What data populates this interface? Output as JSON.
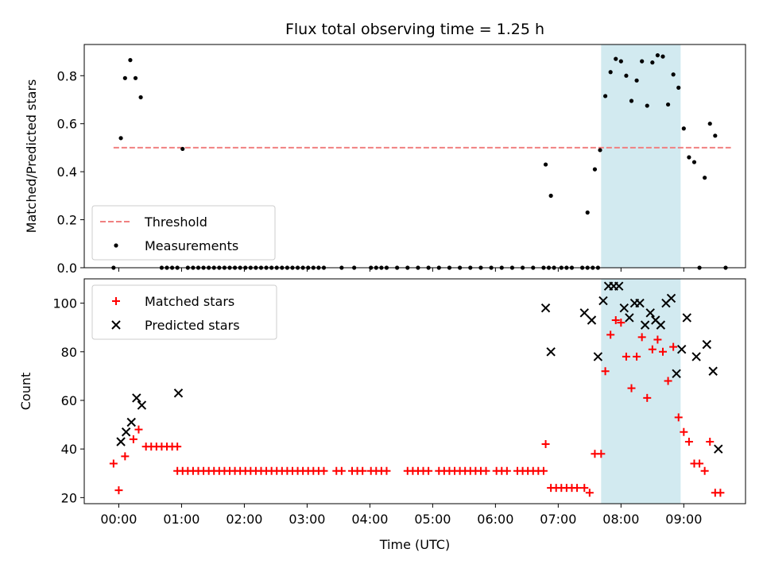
{
  "title": "Flux total observing time = 1.25 h",
  "xlabel": "Time (UTC)",
  "x_ticks": [
    "00:00",
    "01:00",
    "02:00",
    "03:00",
    "04:00",
    "05:00",
    "06:00",
    "07:00",
    "08:00",
    "09:00"
  ],
  "highlight_color": "#a6d6e2",
  "chart_data": [
    {
      "type": "scatter",
      "ylabel": "Matched/Predicted stars",
      "xlim": [
        "-00:33",
        "09:59"
      ],
      "ylim": [
        0,
        0.93
      ],
      "y_ticks": [
        "0.0",
        "0.2",
        "0.4",
        "0.6",
        "0.8"
      ],
      "highlight_span": [
        "07:41",
        "08:57"
      ],
      "legend": {
        "position": "lower-left",
        "entries": [
          "Threshold",
          "Measurements"
        ]
      },
      "threshold": {
        "name": "Threshold",
        "value": 0.5,
        "x_range": [
          "-00:05",
          "09:45"
        ],
        "color": "#f08080",
        "style": "dashed"
      },
      "series": [
        {
          "name": "Measurements",
          "marker": "dot",
          "color": "#000000",
          "points": [
            [
              "-00:05",
              0
            ],
            [
              "00:02",
              0.54
            ],
            [
              "00:06",
              0.79
            ],
            [
              "00:11",
              0.865
            ],
            [
              "00:16",
              0.79
            ],
            [
              "00:21",
              0.71
            ],
            [
              "00:41",
              0
            ],
            [
              "00:46",
              0
            ],
            [
              "00:51",
              0
            ],
            [
              "00:56",
              0
            ],
            [
              "01:01",
              0.495
            ],
            [
              "01:06",
              0
            ],
            [
              "01:11",
              0
            ],
            [
              "01:16",
              0
            ],
            [
              "01:21",
              0
            ],
            [
              "01:26",
              0
            ],
            [
              "01:31",
              0
            ],
            [
              "01:36",
              0
            ],
            [
              "01:41",
              0
            ],
            [
              "01:46",
              0
            ],
            [
              "01:51",
              0
            ],
            [
              "01:56",
              0
            ],
            [
              "02:01",
              0
            ],
            [
              "02:06",
              0
            ],
            [
              "02:11",
              0
            ],
            [
              "02:16",
              0
            ],
            [
              "02:21",
              0
            ],
            [
              "02:26",
              0
            ],
            [
              "02:31",
              0
            ],
            [
              "02:36",
              0
            ],
            [
              "02:41",
              0
            ],
            [
              "02:46",
              0
            ],
            [
              "02:51",
              0
            ],
            [
              "02:56",
              0
            ],
            [
              "03:01",
              0
            ],
            [
              "03:06",
              0
            ],
            [
              "03:11",
              0
            ],
            [
              "03:16",
              0
            ],
            [
              "03:33",
              0
            ],
            [
              "03:45",
              0
            ],
            [
              "04:01",
              0
            ],
            [
              "04:06",
              0
            ],
            [
              "04:11",
              0
            ],
            [
              "04:16",
              0
            ],
            [
              "04:26",
              0
            ],
            [
              "04:36",
              0
            ],
            [
              "04:46",
              0
            ],
            [
              "04:56",
              0
            ],
            [
              "05:06",
              0
            ],
            [
              "05:16",
              0
            ],
            [
              "05:26",
              0
            ],
            [
              "05:36",
              0
            ],
            [
              "05:46",
              0
            ],
            [
              "05:56",
              0
            ],
            [
              "06:06",
              0
            ],
            [
              "06:16",
              0
            ],
            [
              "06:26",
              0
            ],
            [
              "06:36",
              0
            ],
            [
              "06:46",
              0
            ],
            [
              "06:51",
              0
            ],
            [
              "06:56",
              0
            ],
            [
              "06:48",
              0.43
            ],
            [
              "06:53",
              0.3
            ],
            [
              "07:03",
              0
            ],
            [
              "07:08",
              0
            ],
            [
              "07:13",
              0
            ],
            [
              "07:23",
              0
            ],
            [
              "07:28",
              0
            ],
            [
              "07:33",
              0
            ],
            [
              "07:38",
              0
            ],
            [
              "07:28",
              0.23
            ],
            [
              "07:35",
              0.41
            ],
            [
              "07:40",
              0.49
            ],
            [
              "07:45",
              0.715
            ],
            [
              "07:50",
              0.815
            ],
            [
              "07:55",
              0.87
            ],
            [
              "08:00",
              0.86
            ],
            [
              "08:05",
              0.8
            ],
            [
              "08:10",
              0.695
            ],
            [
              "08:15",
              0.78
            ],
            [
              "08:20",
              0.86
            ],
            [
              "08:25",
              0.675
            ],
            [
              "08:30",
              0.855
            ],
            [
              "08:35",
              0.885
            ],
            [
              "08:40",
              0.88
            ],
            [
              "08:45",
              0.68
            ],
            [
              "08:50",
              0.805
            ],
            [
              "08:55",
              0.75
            ],
            [
              "09:00",
              0.58
            ],
            [
              "09:05",
              0.46
            ],
            [
              "09:10",
              0.44
            ],
            [
              "09:15",
              0
            ],
            [
              "09:20",
              0.375
            ],
            [
              "09:25",
              0.6
            ],
            [
              "09:30",
              0.55
            ],
            [
              "09:40",
              0
            ]
          ]
        }
      ]
    },
    {
      "type": "scatter",
      "ylabel": "Count",
      "xlim": [
        "-00:33",
        "09:59"
      ],
      "ylim": [
        17.5,
        110
      ],
      "y_ticks": [
        "20",
        "40",
        "60",
        "80",
        "100"
      ],
      "highlight_span": [
        "07:41",
        "08:57"
      ],
      "legend": {
        "position": "upper-left",
        "entries": [
          "Matched stars",
          "Predicted stars"
        ]
      },
      "series": [
        {
          "name": "Matched stars",
          "marker": "plus",
          "color": "#ff0000",
          "points": [
            [
              "-00:05",
              34
            ],
            [
              "00:00",
              23
            ],
            [
              "00:06",
              37
            ],
            [
              "00:14",
              44
            ],
            [
              "00:19",
              48
            ],
            [
              "00:26",
              41
            ],
            [
              "00:31",
              41
            ],
            [
              "00:36",
              41
            ],
            [
              "00:41",
              41
            ],
            [
              "00:46",
              41
            ],
            [
              "00:51",
              41
            ],
            [
              "00:56",
              41
            ],
            [
              "00:56",
              31
            ],
            [
              "01:01",
              31
            ],
            [
              "01:06",
              31
            ],
            [
              "01:11",
              31
            ],
            [
              "01:16",
              31
            ],
            [
              "01:21",
              31
            ],
            [
              "01:26",
              31
            ],
            [
              "01:31",
              31
            ],
            [
              "01:36",
              31
            ],
            [
              "01:41",
              31
            ],
            [
              "01:46",
              31
            ],
            [
              "01:51",
              31
            ],
            [
              "01:56",
              31
            ],
            [
              "02:01",
              31
            ],
            [
              "02:06",
              31
            ],
            [
              "02:11",
              31
            ],
            [
              "02:16",
              31
            ],
            [
              "02:21",
              31
            ],
            [
              "02:26",
              31
            ],
            [
              "02:31",
              31
            ],
            [
              "02:36",
              31
            ],
            [
              "02:41",
              31
            ],
            [
              "02:46",
              31
            ],
            [
              "02:51",
              31
            ],
            [
              "02:56",
              31
            ],
            [
              "03:01",
              31
            ],
            [
              "03:06",
              31
            ],
            [
              "03:11",
              31
            ],
            [
              "03:16",
              31
            ],
            [
              "03:28",
              31
            ],
            [
              "03:33",
              31
            ],
            [
              "03:43",
              31
            ],
            [
              "03:48",
              31
            ],
            [
              "03:53",
              31
            ],
            [
              "04:01",
              31
            ],
            [
              "04:06",
              31
            ],
            [
              "04:11",
              31
            ],
            [
              "04:16",
              31
            ],
            [
              "04:36",
              31
            ],
            [
              "04:41",
              31
            ],
            [
              "04:46",
              31
            ],
            [
              "04:51",
              31
            ],
            [
              "04:56",
              31
            ],
            [
              "05:06",
              31
            ],
            [
              "05:11",
              31
            ],
            [
              "05:16",
              31
            ],
            [
              "05:21",
              31
            ],
            [
              "05:26",
              31
            ],
            [
              "05:31",
              31
            ],
            [
              "05:36",
              31
            ],
            [
              "05:41",
              31
            ],
            [
              "05:46",
              31
            ],
            [
              "05:51",
              31
            ],
            [
              "06:01",
              31
            ],
            [
              "06:06",
              31
            ],
            [
              "06:11",
              31
            ],
            [
              "06:21",
              31
            ],
            [
              "06:26",
              31
            ],
            [
              "06:31",
              31
            ],
            [
              "06:36",
              31
            ],
            [
              "06:41",
              31
            ],
            [
              "06:46",
              31
            ],
            [
              "06:48",
              42
            ],
            [
              "06:53",
              24
            ],
            [
              "06:58",
              24
            ],
            [
              "07:03",
              24
            ],
            [
              "07:08",
              24
            ],
            [
              "07:13",
              24
            ],
            [
              "07:18",
              24
            ],
            [
              "07:25",
              24
            ],
            [
              "07:30",
              22
            ],
            [
              "07:35",
              38
            ],
            [
              "07:41",
              38
            ],
            [
              "07:45",
              72
            ],
            [
              "07:50",
              87
            ],
            [
              "07:55",
              93
            ],
            [
              "08:00",
              92
            ],
            [
              "08:05",
              78
            ],
            [
              "08:10",
              65
            ],
            [
              "08:15",
              78
            ],
            [
              "08:20",
              86
            ],
            [
              "08:25",
              61
            ],
            [
              "08:30",
              81
            ],
            [
              "08:35",
              85
            ],
            [
              "08:40",
              80
            ],
            [
              "08:45",
              68
            ],
            [
              "08:50",
              82
            ],
            [
              "08:55",
              53
            ],
            [
              "09:00",
              47
            ],
            [
              "09:05",
              43
            ],
            [
              "09:10",
              34
            ],
            [
              "09:15",
              34
            ],
            [
              "09:20",
              31
            ],
            [
              "09:25",
              43
            ],
            [
              "09:30",
              22
            ],
            [
              "09:35",
              22
            ]
          ]
        },
        {
          "name": "Predicted stars",
          "marker": "x",
          "color": "#000000",
          "points": [
            [
              "00:02",
              43
            ],
            [
              "00:07",
              47
            ],
            [
              "00:12",
              51
            ],
            [
              "00:17",
              61
            ],
            [
              "00:22",
              58
            ],
            [
              "00:57",
              63
            ],
            [
              "06:48",
              98
            ],
            [
              "06:53",
              80
            ],
            [
              "07:25",
              96
            ],
            [
              "07:32",
              93
            ],
            [
              "07:38",
              78
            ],
            [
              "07:43",
              101
            ],
            [
              "07:48",
              107
            ],
            [
              "07:53",
              107
            ],
            [
              "07:58",
              107
            ],
            [
              "08:03",
              98
            ],
            [
              "08:08",
              94
            ],
            [
              "08:13",
              100
            ],
            [
              "08:18",
              100
            ],
            [
              "08:23",
              91
            ],
            [
              "08:28",
              96
            ],
            [
              "08:33",
              93
            ],
            [
              "08:38",
              91
            ],
            [
              "08:43",
              100
            ],
            [
              "08:48",
              102
            ],
            [
              "08:53",
              71
            ],
            [
              "08:58",
              81
            ],
            [
              "09:03",
              94
            ],
            [
              "09:12",
              78
            ],
            [
              "09:22",
              83
            ],
            [
              "09:28",
              72
            ],
            [
              "09:33",
              40
            ]
          ]
        }
      ]
    }
  ]
}
